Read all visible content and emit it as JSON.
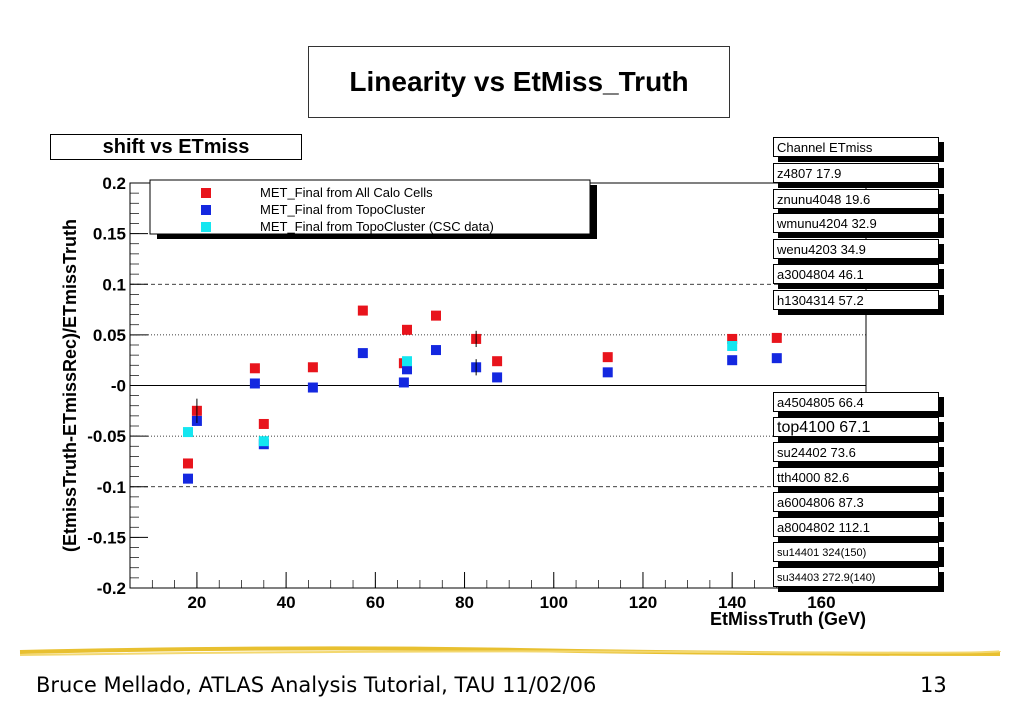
{
  "slide": {
    "title": "Linearity vs EtMiss_Truth",
    "footer": "Bruce Mellado, ATLAS Analysis Tutorial, TAU 11/02/06",
    "page_number": "13"
  },
  "chart_data": {
    "type": "scatter",
    "title": "shift  vs ETmiss",
    "xlabel": "EtMissTruth (GeV)",
    "ylabel": "(EtmissTruth-ETmissRec)/ETmissTruth",
    "xlim": [
      5,
      170
    ],
    "ylim": [
      -0.2,
      0.2
    ],
    "x_ticks": [
      "20",
      "40",
      "60",
      "80",
      "100",
      "120",
      "140",
      "160"
    ],
    "y_ticks": [
      "0.2",
      "0.15",
      "0.1",
      "0.05",
      "-0",
      "-0.05",
      "-0.1",
      "-0.15",
      "-0.2"
    ],
    "reference_lines": {
      "dashed": [
        0.1,
        -0.1
      ],
      "dotted": [
        0.05,
        -0.05
      ]
    },
    "legend_position": "top-left",
    "series": [
      {
        "name": "MET_Final from All Calo Cells",
        "color": "#e8141c",
        "points": [
          [
            18,
            -0.077
          ],
          [
            20,
            -0.025
          ],
          [
            33,
            0.017
          ],
          [
            35,
            -0.038
          ],
          [
            46,
            0.018
          ],
          [
            57.2,
            0.074
          ],
          [
            66.4,
            0.022
          ],
          [
            67.1,
            0.055
          ],
          [
            73.6,
            0.069
          ],
          [
            82.6,
            0.046
          ],
          [
            87.3,
            0.024
          ],
          [
            112.1,
            0.028
          ],
          [
            140,
            0.046
          ],
          [
            150,
            0.047
          ]
        ]
      },
      {
        "name": "MET_Final from TopoCluster",
        "color": "#1428e0",
        "points": [
          [
            18,
            -0.092
          ],
          [
            20,
            -0.035
          ],
          [
            33,
            0.002
          ],
          [
            35,
            -0.058
          ],
          [
            46,
            -0.002
          ],
          [
            57.2,
            0.032
          ],
          [
            66.4,
            0.003
          ],
          [
            67.1,
            0.016
          ],
          [
            73.6,
            0.035
          ],
          [
            82.6,
            0.018
          ],
          [
            87.3,
            0.008
          ],
          [
            112.1,
            0.013
          ],
          [
            140,
            0.025
          ],
          [
            150,
            0.027
          ]
        ]
      },
      {
        "name": "MET_Final from TopoCluster (CSC data)",
        "color": "#14e6f0",
        "points": [
          [
            18,
            -0.046
          ],
          [
            35,
            -0.055
          ],
          [
            67.1,
            0.024
          ],
          [
            140,
            0.039
          ]
        ]
      }
    ],
    "channels_top": [
      "Channel ETmiss",
      "z4807 17.9",
      "znunu4048  19.6",
      "wmunu4204 32.9",
      "wenu4203  34.9",
      "a3004804 46.1",
      "h1304314  57.2"
    ],
    "channels_bottom": [
      "a4504805  66.4",
      "top4100 67.1",
      "su24402 73.6",
      "tth4000  82.6",
      "a6004806 87.3",
      "a8004802  112.1",
      "su14401 324(150)",
      "su34403 272.9(140)"
    ]
  }
}
